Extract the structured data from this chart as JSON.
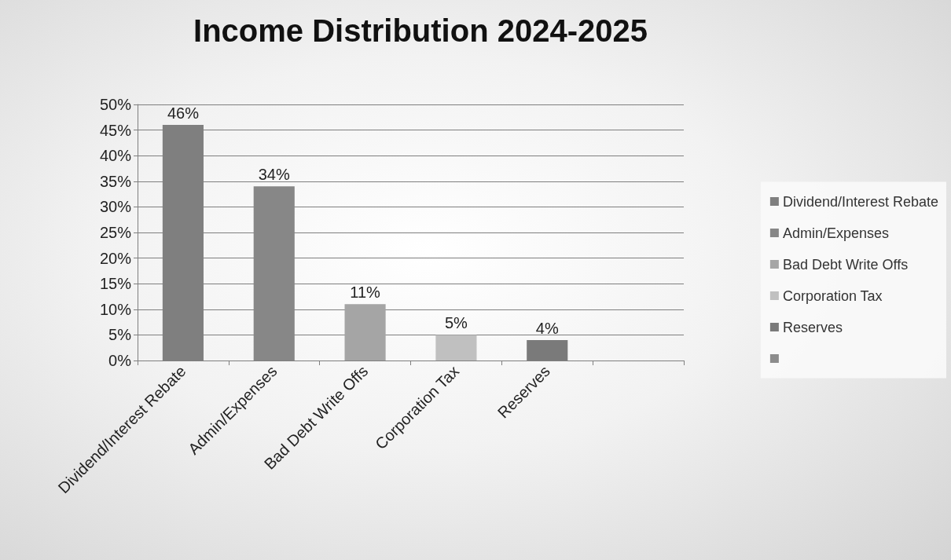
{
  "chart_data": {
    "type": "bar",
    "title": "Income Distribution 2024-2025",
    "categories": [
      "Dividend/Interest Rebate",
      "Admin/Expenses",
      "Bad Debt Write Offs",
      "Corporation Tax",
      "Reserves",
      null
    ],
    "series": [
      {
        "name": "Dividend/Interest Rebate",
        "color": "#7f7f7f",
        "values": [
          46,
          null,
          null,
          null,
          null,
          null
        ],
        "value_labels": [
          "46%",
          null,
          null,
          null,
          null,
          null
        ]
      },
      {
        "name": "Admin/Expenses",
        "color": "#878787",
        "values": [
          null,
          34,
          null,
          null,
          null,
          null
        ],
        "value_labels": [
          null,
          "34%",
          null,
          null,
          null,
          null
        ]
      },
      {
        "name": "Bad Debt Write Offs",
        "color": "#a5a5a5",
        "values": [
          null,
          null,
          11,
          null,
          null,
          null
        ],
        "value_labels": [
          null,
          null,
          "11%",
          null,
          null,
          null
        ]
      },
      {
        "name": "Corporation Tax",
        "color": "#c0c0c0",
        "values": [
          null,
          null,
          null,
          5,
          null,
          null
        ],
        "value_labels": [
          null,
          null,
          null,
          "5%",
          null,
          null
        ]
      },
      {
        "name": "Reserves",
        "color": "#7a7a7a",
        "values": [
          null,
          null,
          null,
          null,
          4,
          null
        ],
        "value_labels": [
          null,
          null,
          null,
          null,
          "4%",
          null
        ]
      },
      {
        "color": "#8c8c8c",
        "values": [
          null,
          null,
          null,
          null,
          null,
          null
        ]
      }
    ],
    "ylim": [
      0,
      50
    ],
    "yticks": [
      {
        "value": 0,
        "label": "0%"
      },
      {
        "value": 5,
        "label": "5%"
      },
      {
        "value": 10,
        "label": "10%"
      },
      {
        "value": 15,
        "label": "15%"
      },
      {
        "value": 20,
        "label": "20%"
      },
      {
        "value": 25,
        "label": "25%"
      },
      {
        "value": 30,
        "label": "30%"
      },
      {
        "value": 35,
        "label": "35%"
      },
      {
        "value": 40,
        "label": "40%"
      },
      {
        "value": 45,
        "label": "45%"
      },
      {
        "value": 50,
        "label": "50%"
      }
    ],
    "grid": "y",
    "legend": "right"
  }
}
